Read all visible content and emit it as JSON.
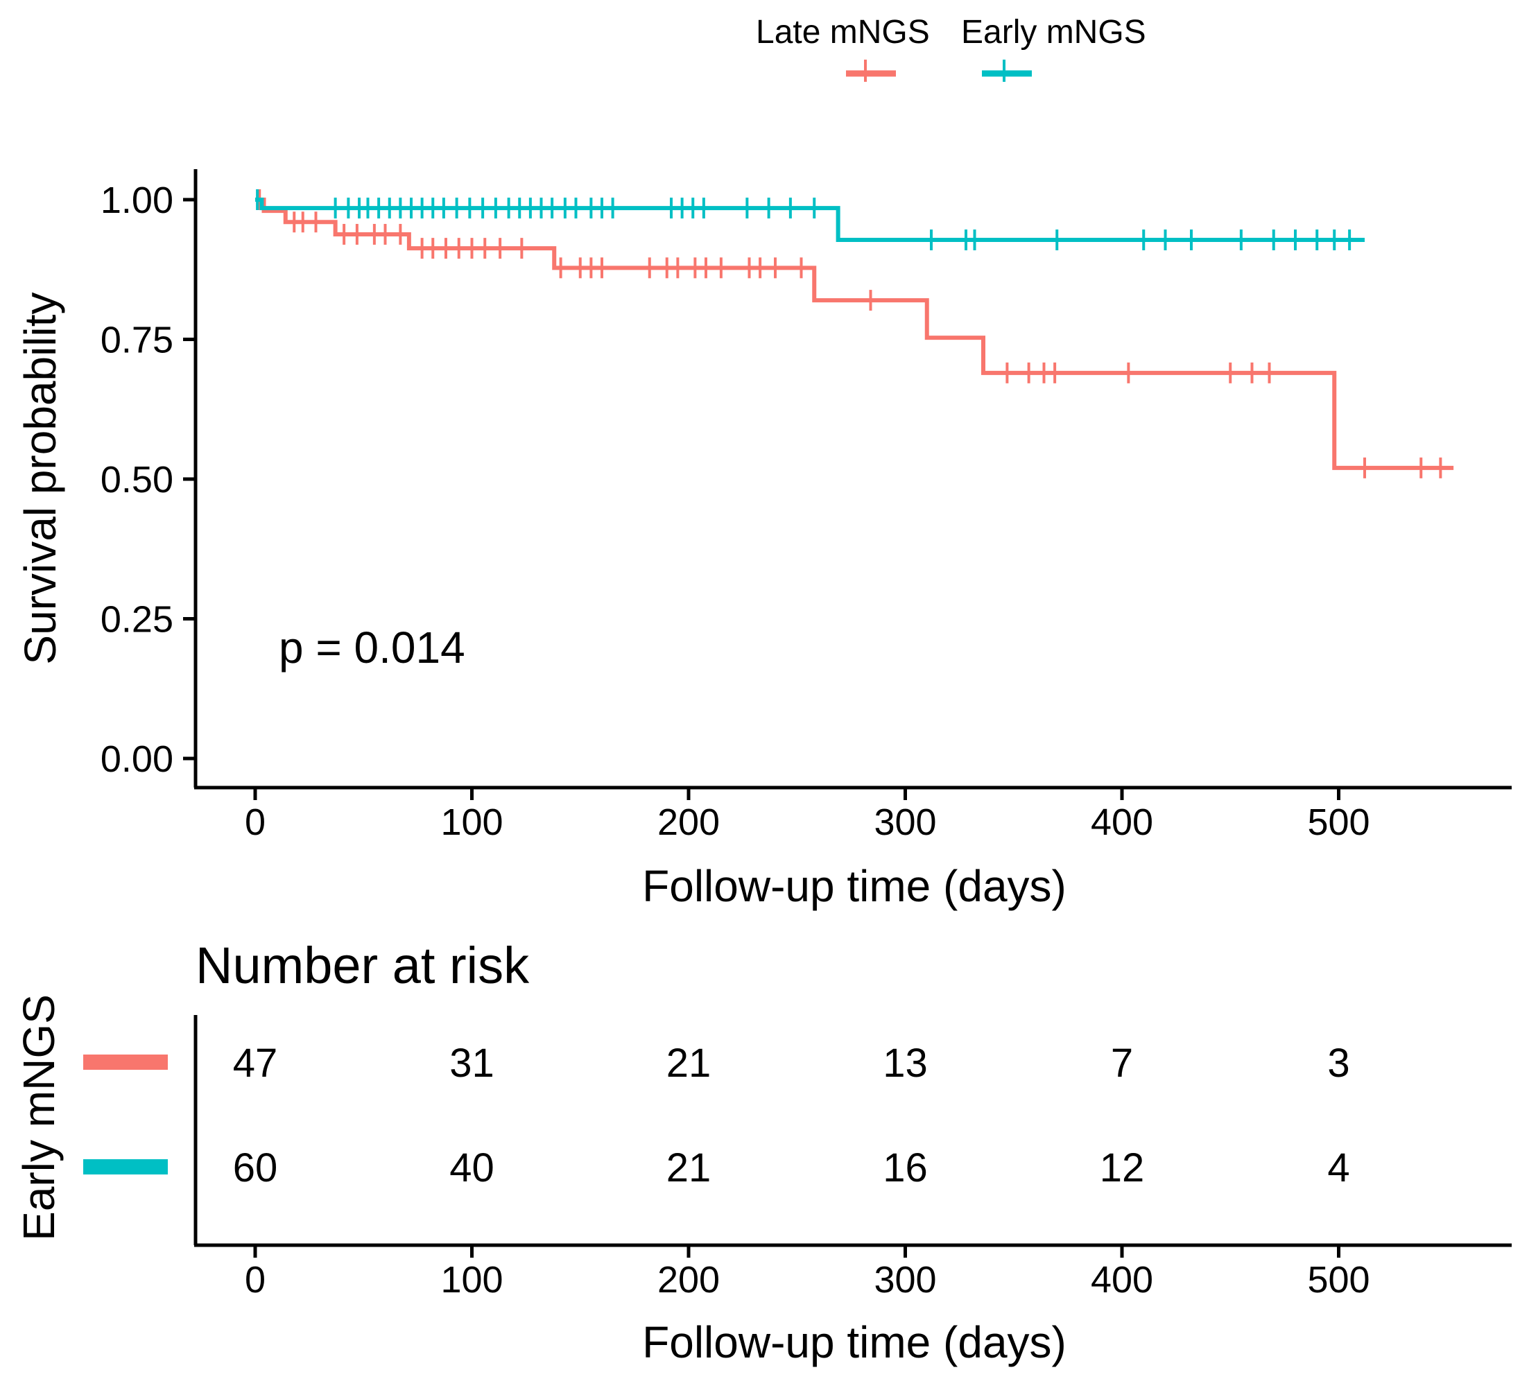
{
  "chart_data": {
    "type": "kaplan-meier",
    "xlabel": "Follow-up time (days)",
    "ylabel": "Survival probability",
    "xlim": [
      -27,
      580
    ],
    "ylim": [
      -0.05,
      1.05
    ],
    "x_ticks": [
      0,
      100,
      200,
      300,
      400,
      500
    ],
    "x_tick_labels": [
      "0",
      "100",
      "200",
      "300",
      "400",
      "500"
    ],
    "y_ticks": [
      0,
      0.25,
      0.5,
      0.75,
      1.0
    ],
    "y_tick_labels": [
      "0.00",
      "0.25",
      "0.50",
      "0.75",
      "1.00"
    ],
    "legend_position": "top",
    "grid": false,
    "annotation": "p = 0.014",
    "series": [
      {
        "name": "Late mNGS",
        "color": "#F8766D",
        "steps": [
          [
            0,
            1.0
          ],
          [
            4,
            0.98
          ],
          [
            14,
            0.96
          ],
          [
            37,
            0.938
          ],
          [
            71,
            0.913
          ],
          [
            138,
            0.878
          ],
          [
            258,
            0.82
          ],
          [
            310,
            0.753
          ],
          [
            336,
            0.69
          ],
          [
            498,
            0.52
          ],
          [
            553,
            0.52
          ]
        ],
        "censor_times": [
          2,
          18,
          22,
          28,
          41,
          47,
          55,
          60,
          67,
          77,
          82,
          88,
          94,
          100,
          106,
          113,
          123,
          141,
          150,
          155,
          160,
          182,
          190,
          195,
          203,
          208,
          215,
          228,
          233,
          240,
          252,
          284,
          347,
          357,
          364,
          369,
          403,
          450,
          460,
          468,
          512,
          538,
          547
        ]
      },
      {
        "name": "Early mNGS",
        "color": "#00BFC4",
        "steps": [
          [
            0,
            1.0
          ],
          [
            3,
            0.985
          ],
          [
            269,
            0.928
          ],
          [
            512,
            0.928
          ]
        ],
        "censor_times": [
          1,
          37,
          43,
          48,
          52,
          57,
          62,
          67,
          72,
          77,
          82,
          87,
          93,
          99,
          105,
          111,
          117,
          122,
          127,
          132,
          137,
          143,
          148,
          155,
          160,
          165,
          192,
          197,
          202,
          207,
          227,
          237,
          247,
          258,
          312,
          328,
          332,
          370,
          410,
          420,
          432,
          455,
          470,
          480,
          490,
          498,
          505
        ]
      }
    ],
    "risk_table": {
      "title": "Number at risk",
      "strata_axis_label": "Early mNGS",
      "times": [
        0,
        100,
        200,
        300,
        400,
        500
      ],
      "rows": [
        {
          "name": "Late mNGS",
          "color": "#F8766D",
          "counts": [
            "47",
            "31",
            "21",
            "13",
            "7",
            "3"
          ]
        },
        {
          "name": "Early mNGS",
          "color": "#00BFC4",
          "counts": [
            "60",
            "40",
            "21",
            "16",
            "12",
            "4"
          ]
        }
      ],
      "xlabel": "Follow-up time (days)"
    }
  }
}
